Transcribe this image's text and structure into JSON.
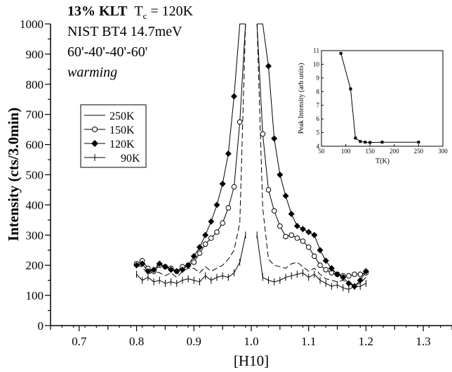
{
  "chart_data": {
    "type": "line",
    "xlabel": "[H10]",
    "ylabel": "Intensity (cts/3.0min)",
    "xlim": [
      0.65,
      1.35
    ],
    "ylim": [
      0,
      1000
    ],
    "xticks": [
      "0.7",
      "0.8",
      "0.9",
      "1.0",
      "1.1",
      "1.2",
      "1.3"
    ],
    "yticks": [
      "0",
      "100",
      "200",
      "300",
      "400",
      "500",
      "600",
      "700",
      "800",
      "900",
      "1000"
    ],
    "annotation": {
      "line1_bold": "13% KLT",
      "line1_tc": "T",
      "line1_tc_sub": "c",
      "line1_tc_val": " = 120K",
      "line2": "NIST BT4  14.7meV",
      "line3": "60'-40'-40'-60'",
      "line4": "warming"
    },
    "legend": {
      "placement": "upper-left",
      "entries": [
        "250K",
        "150K",
        "120K",
        "90K"
      ]
    },
    "series": [
      {
        "name": "250K",
        "x": [
          0.8,
          0.81,
          0.82,
          0.83,
          0.84,
          0.85,
          0.86,
          0.87,
          0.88,
          0.89,
          0.9,
          0.91,
          0.92,
          0.93,
          0.94,
          0.95,
          0.96,
          0.97,
          0.98,
          0.99,
          1.01,
          1.02,
          1.03,
          1.04,
          1.05,
          1.06,
          1.07,
          1.08,
          1.09,
          1.1,
          1.11,
          1.12,
          1.13,
          1.14,
          1.15,
          1.16,
          1.17,
          1.18,
          1.19,
          1.2
        ],
        "y": [
          200,
          195,
          170,
          180,
          175,
          165,
          175,
          160,
          180,
          190,
          190,
          175,
          195,
          180,
          190,
          200,
          220,
          250,
          340,
          1000,
          1000,
          390,
          220,
          200,
          195,
          190,
          205,
          210,
          195,
          180,
          190,
          170,
          155,
          150,
          145,
          150,
          140,
          135,
          140,
          160
        ]
      },
      {
        "name": "150K",
        "x": [
          0.8,
          0.81,
          0.82,
          0.83,
          0.84,
          0.85,
          0.86,
          0.87,
          0.88,
          0.89,
          0.9,
          0.91,
          0.92,
          0.93,
          0.94,
          0.95,
          0.96,
          0.97,
          0.98,
          0.99,
          1.01,
          1.02,
          1.03,
          1.04,
          1.05,
          1.06,
          1.07,
          1.08,
          1.09,
          1.1,
          1.11,
          1.12,
          1.13,
          1.14,
          1.15,
          1.16,
          1.17,
          1.18,
          1.19,
          1.2
        ],
        "y": [
          205,
          215,
          190,
          180,
          200,
          195,
          190,
          180,
          195,
          200,
          210,
          240,
          270,
          290,
          310,
          340,
          390,
          460,
          675,
          1000,
          1000,
          635,
          450,
          380,
          330,
          295,
          300,
          290,
          280,
          260,
          230,
          200,
          185,
          175,
          170,
          165,
          165,
          170,
          170,
          175
        ]
      },
      {
        "name": "120K",
        "x": [
          0.8,
          0.81,
          0.82,
          0.83,
          0.84,
          0.85,
          0.86,
          0.87,
          0.88,
          0.89,
          0.9,
          0.91,
          0.92,
          0.93,
          0.94,
          0.95,
          0.96,
          0.97,
          0.98,
          0.99,
          1.01,
          1.02,
          1.03,
          1.04,
          1.05,
          1.06,
          1.07,
          1.08,
          1.09,
          1.1,
          1.11,
          1.12,
          1.13,
          1.14,
          1.15,
          1.16,
          1.17,
          1.18,
          1.19,
          1.2
        ],
        "y": [
          200,
          205,
          180,
          185,
          205,
          195,
          185,
          180,
          185,
          200,
          230,
          260,
          300,
          345,
          400,
          470,
          570,
          760,
          1000,
          1000,
          1000,
          1000,
          860,
          620,
          500,
          430,
          370,
          330,
          320,
          310,
          300,
          250,
          215,
          190,
          170,
          160,
          140,
          130,
          150,
          180
        ]
      },
      {
        "name": "90K",
        "x": [
          0.8,
          0.81,
          0.82,
          0.83,
          0.84,
          0.85,
          0.86,
          0.87,
          0.88,
          0.89,
          0.9,
          0.91,
          0.92,
          0.93,
          0.94,
          0.95,
          0.96,
          0.97,
          0.98,
          0.99,
          1.01,
          1.02,
          1.03,
          1.04,
          1.05,
          1.06,
          1.07,
          1.08,
          1.09,
          1.1,
          1.11,
          1.12,
          1.13,
          1.14,
          1.15,
          1.16,
          1.17,
          1.18,
          1.19,
          1.2
        ],
        "y": [
          170,
          150,
          160,
          145,
          150,
          140,
          145,
          140,
          150,
          155,
          150,
          145,
          165,
          150,
          160,
          165,
          160,
          175,
          210,
          300,
          300,
          160,
          150,
          145,
          150,
          160,
          165,
          170,
          175,
          160,
          170,
          150,
          140,
          130,
          135,
          125,
          120,
          130,
          130,
          140
        ]
      }
    ],
    "inset": {
      "type": "line",
      "xlabel": "T(K)",
      "ylabel": "Peak Intensity (arb units)",
      "xlim": [
        50,
        300
      ],
      "ylim": [
        4,
        11
      ],
      "xticks": [
        "50",
        "100",
        "150",
        "200",
        "250",
        "300"
      ],
      "yticks": [
        "4",
        "5",
        "6",
        "7",
        "8",
        "9",
        "10",
        "11"
      ],
      "x": [
        90,
        110,
        120,
        130,
        140,
        150,
        175,
        250
      ],
      "y": [
        10.8,
        8.2,
        4.6,
        4.35,
        4.3,
        4.28,
        4.3,
        4.3
      ]
    }
  }
}
